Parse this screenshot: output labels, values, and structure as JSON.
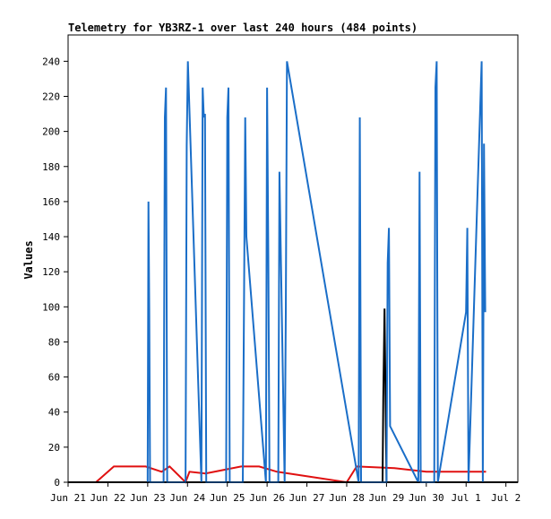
{
  "chart_data": {
    "type": "line",
    "title": "Telemetry for YB3RZ-1 over last 240 hours (484 points)",
    "xlabel": "",
    "ylabel": "Values",
    "x_tick_labels": [
      "Jun 21",
      "Jun 22",
      "Jun 23",
      "Jun 24",
      "Jun 25",
      "Jun 26",
      "Jun 27",
      "Jun 28",
      "Jun 29",
      "Jun 30",
      "Jul 1",
      "Jul 2"
    ],
    "x_ticks_days": [
      0,
      1,
      2,
      3,
      4,
      5,
      6,
      7,
      8,
      9,
      10,
      11
    ],
    "x_range_days": [
      0,
      11.3
    ],
    "ylim": [
      0,
      255
    ],
    "y_ticks": [
      0,
      20,
      40,
      60,
      80,
      100,
      120,
      140,
      160,
      180,
      200,
      220,
      240
    ],
    "grid": false,
    "legend": "none",
    "colors": {
      "red": "#e01010",
      "blue": "#1a6ec8",
      "black": "#000000",
      "frame": "#000000"
    },
    "series": [
      {
        "color_key": "red",
        "x": [
          0.7,
          1.15,
          1.95,
          2.35,
          2.55,
          2.95,
          3.05,
          3.45,
          4.35,
          4.8,
          5.25,
          7.0,
          7.25,
          8.2,
          9.0,
          9.3,
          9.95,
          10.5
        ],
        "y": [
          0,
          9,
          9,
          6,
          9,
          0,
          6,
          5,
          9,
          9,
          6,
          0,
          9,
          8,
          6,
          6,
          6,
          6
        ]
      },
      {
        "color_key": "black",
        "x": [
          0.0,
          7.9,
          7.92,
          7.95,
          8.0,
          11.3
        ],
        "y": [
          0,
          0,
          48,
          99,
          0,
          0
        ]
      },
      {
        "color_key": "blue",
        "x": [
          2.0,
          2.02,
          2.04,
          2.06,
          2.4,
          2.43,
          2.46,
          2.49,
          2.95,
          2.98,
          3.01,
          3.35,
          3.38,
          3.41,
          3.44,
          3.47,
          3.97,
          4.0,
          4.03,
          4.06,
          4.39,
          4.42,
          4.45,
          4.48,
          4.97,
          5.0,
          5.03,
          5.06,
          5.28,
          5.31,
          5.44,
          5.47,
          5.5,
          7.3,
          7.33,
          7.36,
          8.0,
          8.03,
          8.06,
          8.09,
          8.8,
          8.83,
          8.86,
          9.2,
          9.23,
          9.26,
          9.29,
          10.0,
          10.03,
          10.06,
          10.39,
          10.42,
          10.45,
          10.48
        ],
        "y": [
          0,
          160,
          97,
          0,
          0,
          208,
          225,
          0,
          0,
          192,
          240,
          0,
          225,
          208,
          210,
          0,
          0,
          208,
          225,
          0,
          0,
          105,
          208,
          140,
          0,
          225,
          128,
          0,
          0,
          177,
          0,
          97,
          240,
          0,
          208,
          0,
          0,
          125,
          145,
          32,
          0,
          177,
          0,
          0,
          225,
          240,
          0,
          97,
          145,
          0,
          240,
          0,
          193,
          97
        ]
      }
    ]
  }
}
